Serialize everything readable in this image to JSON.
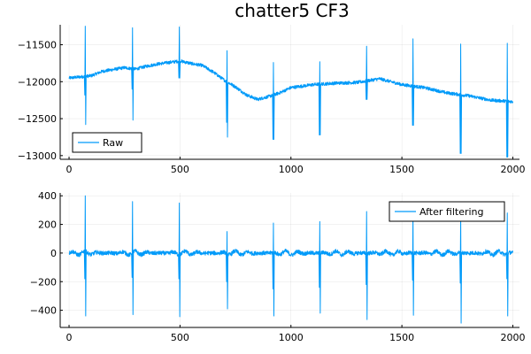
{
  "colors": {
    "series": "#009af9",
    "axis": "#000000",
    "background": "#ffffff"
  },
  "chart_data": [
    {
      "type": "line",
      "title": "chatter5 CF3",
      "xlabel": "",
      "ylabel": "",
      "xlim": [
        -40,
        2030
      ],
      "ylim": [
        -13050,
        -11230
      ],
      "xticks": [
        0,
        500,
        1000,
        1500,
        2000
      ],
      "xtick_labels": [
        "0",
        "500",
        "1000",
        "1500",
        "2000"
      ],
      "yticks": [
        -13000,
        -12500,
        -12000,
        -11500
      ],
      "ytick_labels": [
        "−13000",
        "−12500",
        "−12000",
        "−11500"
      ],
      "grid": true,
      "legend_position": "bottom-left",
      "series": [
        {
          "name": "Raw",
          "color": "#009af9",
          "baseline": [
            [
              0,
              -11950
            ],
            [
              100,
              -11920
            ],
            [
              150,
              -11860
            ],
            [
              250,
              -11810
            ],
            [
              300,
              -11830
            ],
            [
              350,
              -11790
            ],
            [
              400,
              -11760
            ],
            [
              500,
              -11720
            ],
            [
              560,
              -11760
            ],
            [
              600,
              -11780
            ],
            [
              650,
              -11870
            ],
            [
              700,
              -11980
            ],
            [
              750,
              -12070
            ],
            [
              800,
              -12180
            ],
            [
              850,
              -12240
            ],
            [
              900,
              -12200
            ],
            [
              950,
              -12150
            ],
            [
              1000,
              -12080
            ],
            [
              1100,
              -12040
            ],
            [
              1200,
              -12020
            ],
            [
              1300,
              -12010
            ],
            [
              1400,
              -11960
            ],
            [
              1500,
              -12040
            ],
            [
              1600,
              -12080
            ],
            [
              1700,
              -12150
            ],
            [
              1800,
              -12190
            ],
            [
              1900,
              -12250
            ],
            [
              2000,
              -12270
            ]
          ],
          "spikes": [
            {
              "x": 73,
              "down": -12180,
              "up": -11250,
              "deep": -12580
            },
            {
              "x": 286,
              "down": -12100,
              "up": -11270,
              "deep": -12520
            },
            {
              "x": 497,
              "down": -11950,
              "up": -11260,
              "deep": null
            },
            {
              "x": 712,
              "down": -12550,
              "up": -11580,
              "deep": -12750
            },
            {
              "x": 921,
              "down": -12780,
              "up": -11740,
              "deep": null
            },
            {
              "x": 1130,
              "down": -12720,
              "up": -11730,
              "deep": null
            },
            {
              "x": 1341,
              "down": -12240,
              "up": -11520,
              "deep": null
            },
            {
              "x": 1550,
              "down": -12590,
              "up": -11420,
              "deep": null
            },
            {
              "x": 1765,
              "down": -12970,
              "up": -11490,
              "deep": null
            },
            {
              "x": 1975,
              "down": -13020,
              "up": -11480,
              "deep": null
            }
          ]
        }
      ]
    },
    {
      "type": "line",
      "title": "",
      "xlabel": "",
      "ylabel": "",
      "xlim": [
        -40,
        2030
      ],
      "ylim": [
        -520,
        420
      ],
      "xticks": [
        0,
        500,
        1000,
        1500,
        2000
      ],
      "xtick_labels": [
        "0",
        "500",
        "1000",
        "1500",
        "2000"
      ],
      "yticks": [
        -400,
        -200,
        0,
        200,
        400
      ],
      "ytick_labels": [
        "−400",
        "−200",
        "0",
        "200",
        "400"
      ],
      "grid": true,
      "legend_position": "top-right",
      "series": [
        {
          "name": "After filtering",
          "color": "#009af9",
          "baseline": [
            [
              0,
              0
            ],
            [
              2000,
              0
            ]
          ],
          "spikes": [
            {
              "x": 73,
              "down": -180,
              "up": 400,
              "deep": -440
            },
            {
              "x": 286,
              "down": -170,
              "up": 360,
              "deep": -430
            },
            {
              "x": 497,
              "down": -180,
              "up": 350,
              "deep": -445
            },
            {
              "x": 712,
              "down": -200,
              "up": 150,
              "deep": -390
            },
            {
              "x": 921,
              "down": -250,
              "up": 210,
              "deep": -440
            },
            {
              "x": 1130,
              "down": -240,
              "up": 220,
              "deep": -420
            },
            {
              "x": 1341,
              "down": -220,
              "up": 290,
              "deep": -465
            },
            {
              "x": 1550,
              "down": -190,
              "up": 280,
              "deep": -435
            },
            {
              "x": 1765,
              "down": -210,
              "up": 275,
              "deep": -490
            },
            {
              "x": 1975,
              "down": -180,
              "up": 280,
              "deep": -440
            }
          ]
        }
      ]
    }
  ]
}
